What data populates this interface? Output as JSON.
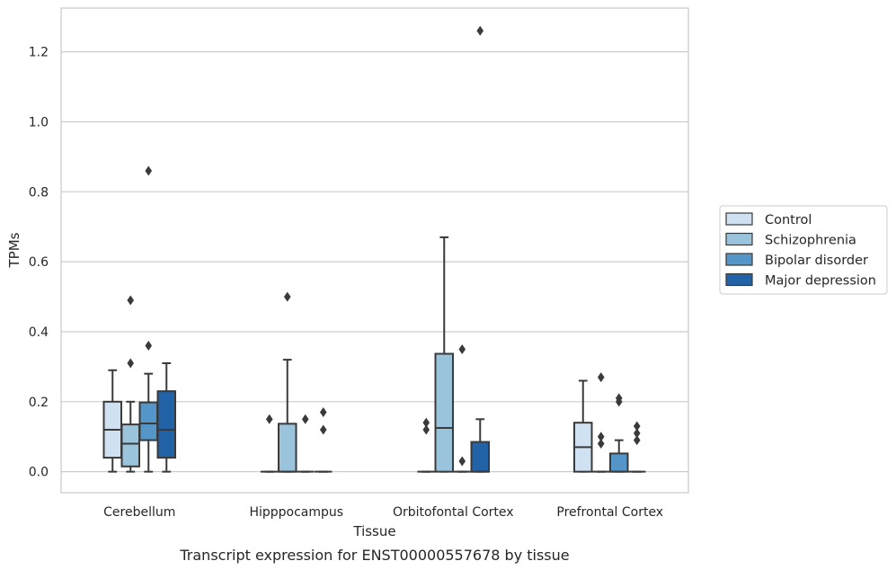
{
  "caption": "Transcript expression for ENST00000557678 by tissue",
  "chart_data": {
    "type": "boxplot",
    "xlabel": "Tissue",
    "ylabel": "TPMs",
    "ylim": [
      -0.06,
      1.325
    ],
    "yticks": [
      "0.0",
      "0.2",
      "0.4",
      "0.6",
      "0.8",
      "1.0",
      "1.2"
    ],
    "grid": true,
    "legend_position": "right",
    "categories": [
      "Cerebellum",
      "Hipppocampus",
      "Orbitofontal Cortex",
      "Prefrontal Cortex"
    ],
    "series": [
      {
        "name": "Control",
        "color": "#d0e1f2",
        "boxes": [
          {
            "whislo": 0.0,
            "q1": 0.04,
            "med": 0.12,
            "q3": 0.2,
            "whishi": 0.29,
            "fliers": []
          },
          {
            "whislo": 0.0,
            "q1": 0.0,
            "med": 0.0,
            "q3": 0.0,
            "whishi": 0.0,
            "fliers": [
              0.15
            ]
          },
          {
            "whislo": 0.0,
            "q1": 0.0,
            "med": 0.0,
            "q3": 0.0,
            "whishi": 0.0,
            "fliers": [
              0.12,
              0.14
            ]
          },
          {
            "whislo": 0.0,
            "q1": 0.0,
            "med": 0.07,
            "q3": 0.14,
            "whishi": 0.26,
            "fliers": []
          }
        ]
      },
      {
        "name": "Schizophrenia",
        "color": "#9ac3dc",
        "boxes": [
          {
            "whislo": 0.0,
            "q1": 0.015,
            "med": 0.08,
            "q3": 0.135,
            "whishi": 0.2,
            "fliers": [
              0.31,
              0.49
            ]
          },
          {
            "whislo": 0.0,
            "q1": 0.0,
            "med": 0.0,
            "q3": 0.137,
            "whishi": 0.32,
            "fliers": [
              0.5
            ]
          },
          {
            "whislo": 0.0,
            "q1": 0.0,
            "med": 0.125,
            "q3": 0.337,
            "whishi": 0.67,
            "fliers": []
          },
          {
            "whislo": 0.0,
            "q1": 0.0,
            "med": 0.0,
            "q3": 0.0,
            "whishi": 0.0,
            "fliers": [
              0.08,
              0.1,
              0.27
            ]
          }
        ]
      },
      {
        "name": "Bipolar disorder",
        "color": "#5496c8",
        "boxes": [
          {
            "whislo": 0.0,
            "q1": 0.09,
            "med": 0.138,
            "q3": 0.198,
            "whishi": 0.28,
            "fliers": [
              0.36,
              0.86
            ]
          },
          {
            "whislo": 0.0,
            "q1": 0.0,
            "med": 0.0,
            "q3": 0.0,
            "whishi": 0.0,
            "fliers": [
              0.15
            ]
          },
          {
            "whislo": 0.0,
            "q1": 0.0,
            "med": 0.0,
            "q3": 0.0,
            "whishi": 0.0,
            "fliers": [
              0.03,
              0.35
            ]
          },
          {
            "whislo": 0.0,
            "q1": 0.0,
            "med": 0.0,
            "q3": 0.052,
            "whishi": 0.09,
            "fliers": [
              0.2,
              0.21
            ]
          }
        ]
      },
      {
        "name": "Major depression",
        "color": "#2262a6",
        "boxes": [
          {
            "whislo": 0.0,
            "q1": 0.04,
            "med": 0.12,
            "q3": 0.23,
            "whishi": 0.31,
            "fliers": []
          },
          {
            "whislo": 0.0,
            "q1": 0.0,
            "med": 0.0,
            "q3": 0.0,
            "whishi": 0.0,
            "fliers": [
              0.12,
              0.17
            ]
          },
          {
            "whislo": 0.0,
            "q1": 0.0,
            "med": 0.0,
            "q3": 0.085,
            "whishi": 0.15,
            "fliers": [
              1.26
            ]
          },
          {
            "whislo": 0.0,
            "q1": 0.0,
            "med": 0.0,
            "q3": 0.0,
            "whishi": 0.0,
            "fliers": [
              0.09,
              0.11,
              0.13
            ]
          }
        ]
      }
    ]
  }
}
